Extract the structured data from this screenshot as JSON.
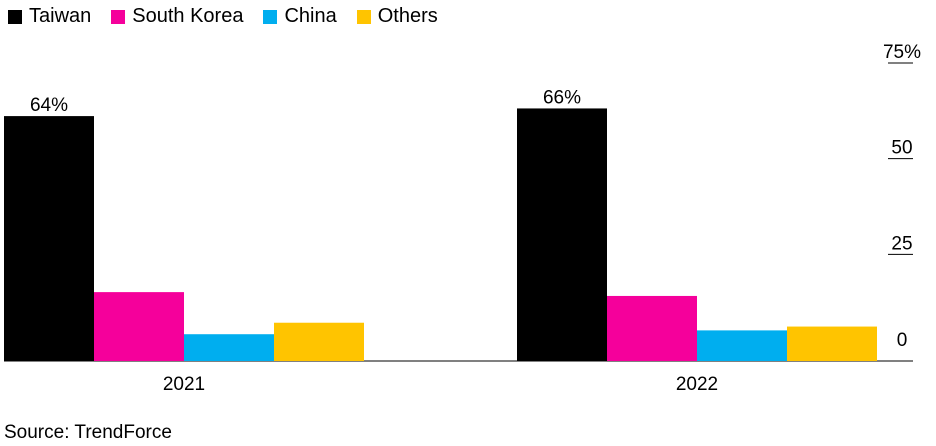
{
  "chart_data": {
    "type": "bar",
    "categories": [
      "2021",
      "2022"
    ],
    "series": [
      {
        "name": "Taiwan",
        "color": "#000000",
        "values": [
          64,
          66
        ]
      },
      {
        "name": "South Korea",
        "color": "#f5009b",
        "values": [
          18,
          17
        ]
      },
      {
        "name": "China",
        "color": "#00aeef",
        "values": [
          7,
          8
        ]
      },
      {
        "name": "Others",
        "color": "#ffc400",
        "values": [
          10,
          9
        ]
      }
    ],
    "data_labels": [
      "64%",
      "66%"
    ],
    "yticks": [
      0,
      25,
      50,
      75
    ],
    "ytick_labels": [
      "0",
      "25",
      "50",
      "75%"
    ],
    "ylim": [
      0,
      75
    ],
    "grid": false,
    "legend_position": "top-left",
    "title": "",
    "xlabel": "",
    "ylabel": ""
  },
  "source": "Source: TrendForce"
}
